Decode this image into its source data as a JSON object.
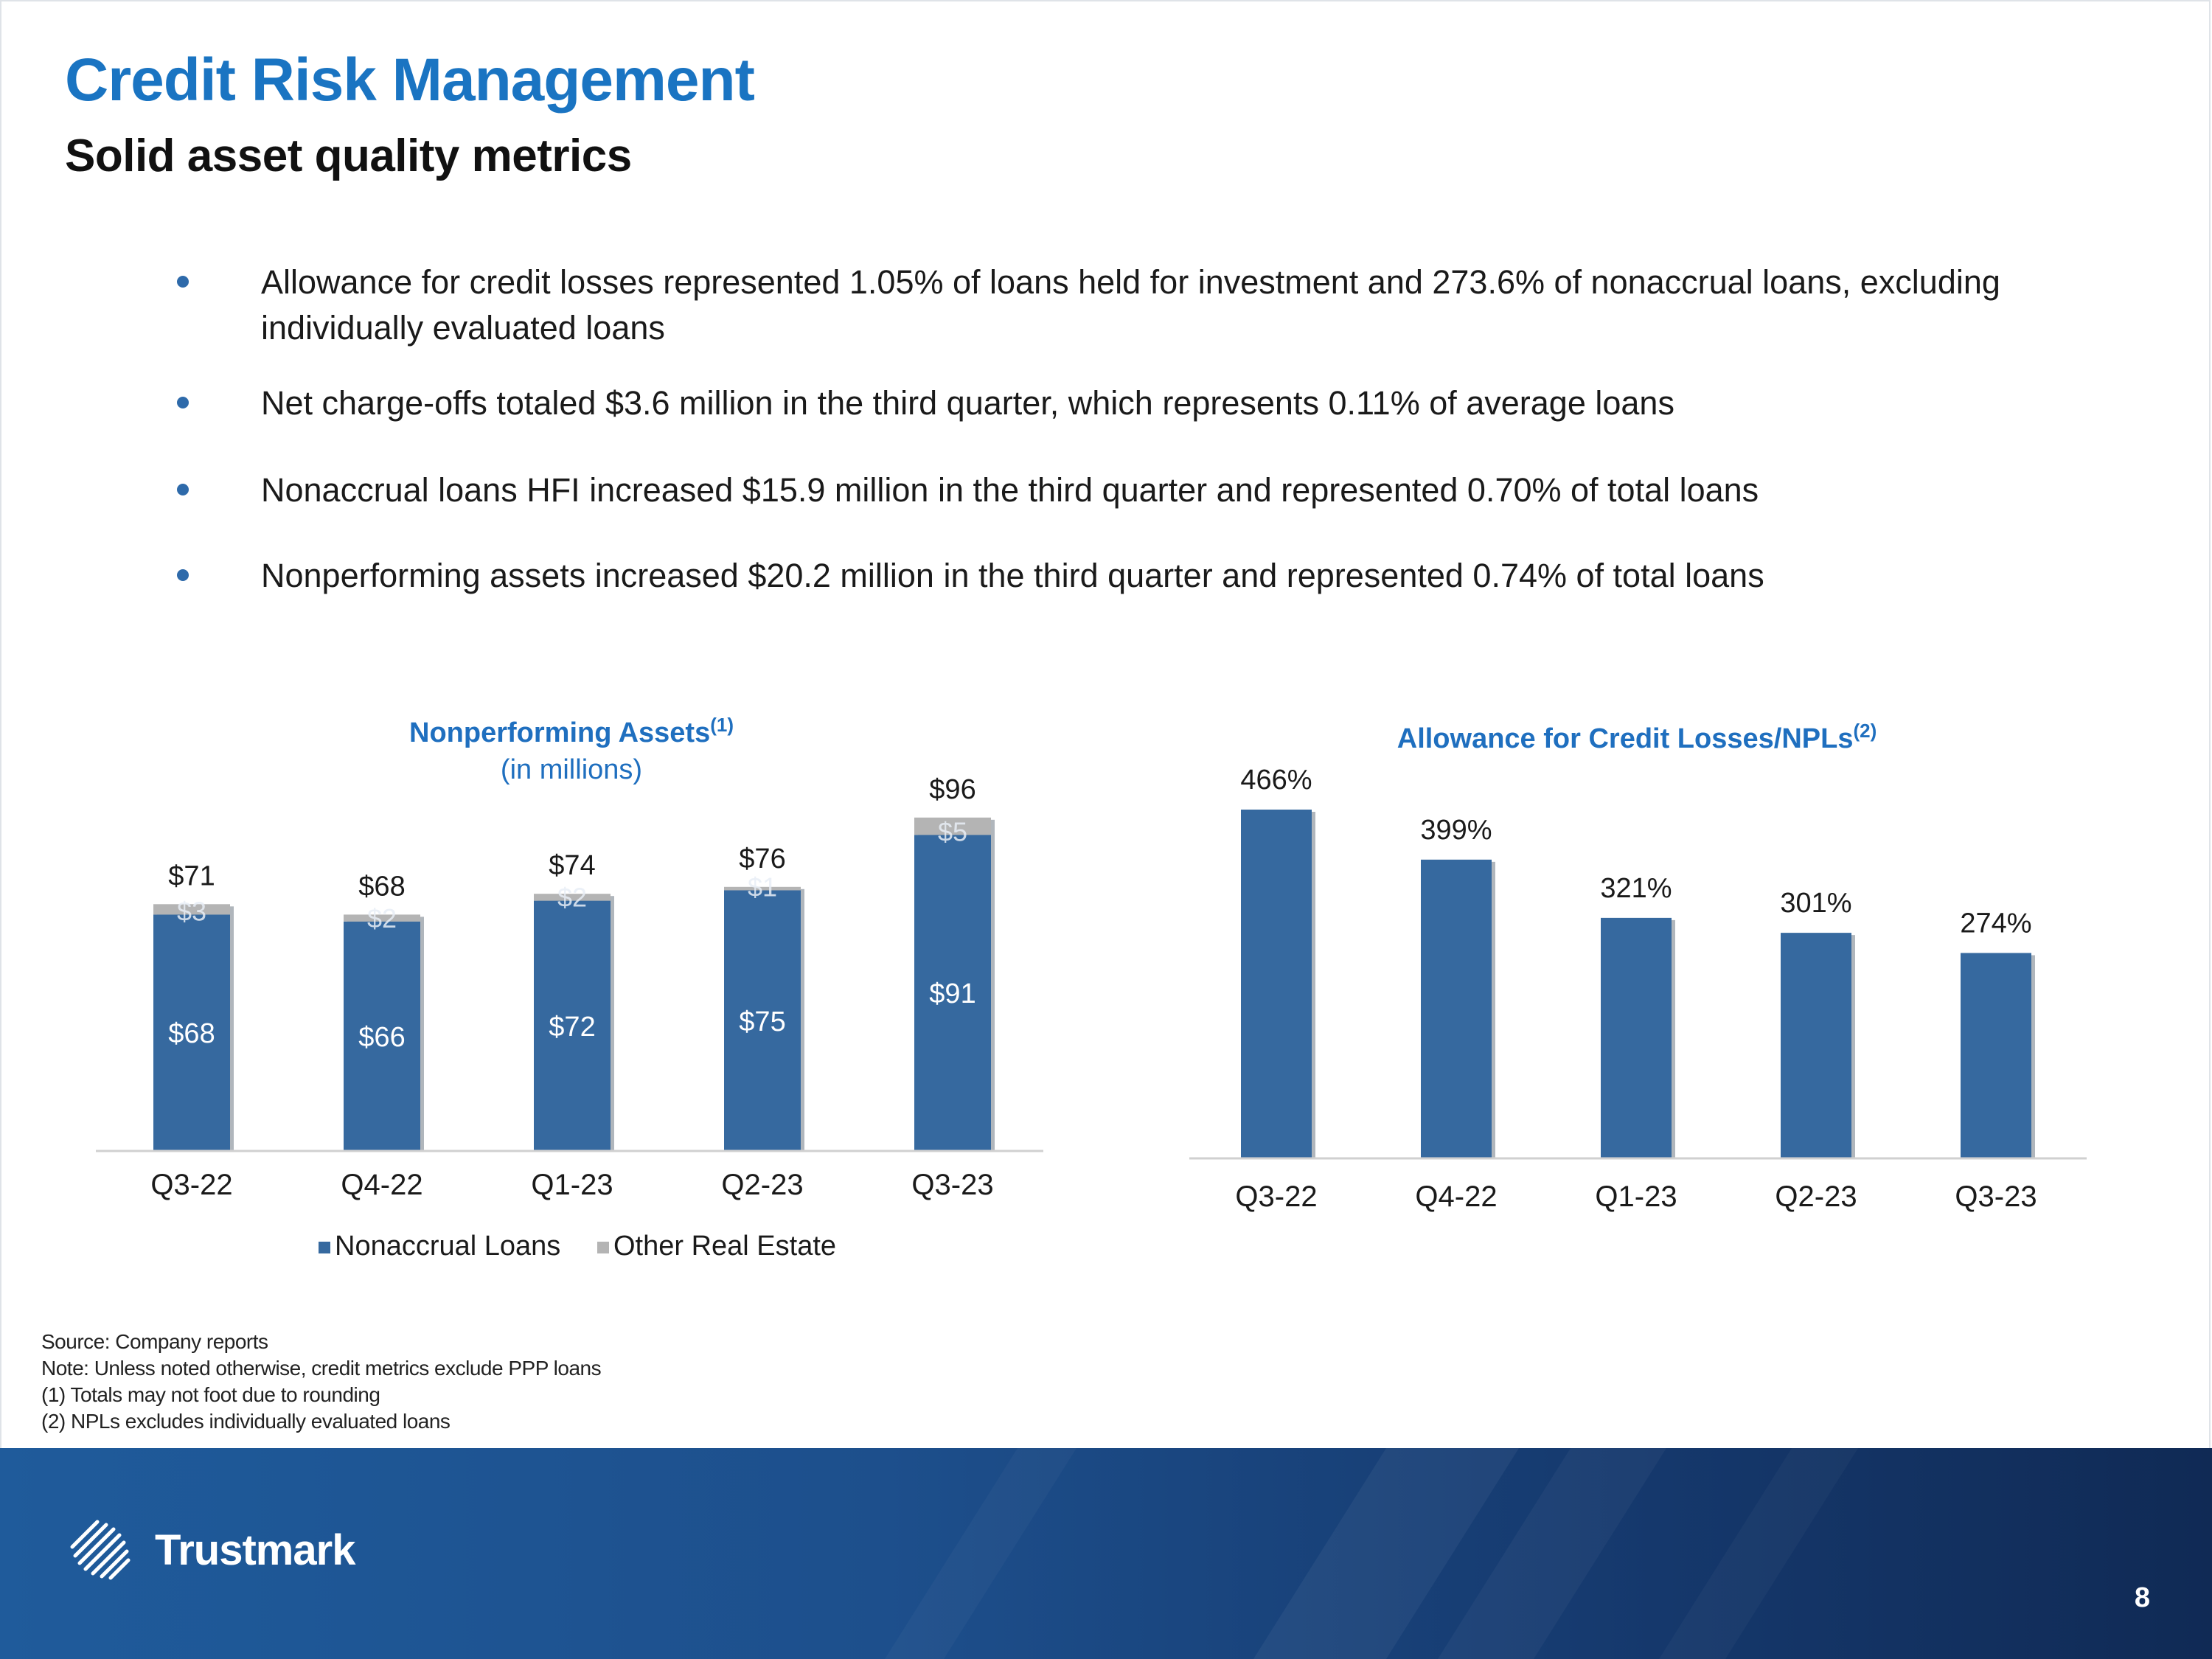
{
  "header": {
    "title": "Credit Risk Management",
    "subtitle": "Solid asset quality metrics"
  },
  "bullets": [
    "Allowance for credit losses represented 1.05% of loans held for investment and 273.6% of nonaccrual loans, excluding individually evaluated loans",
    "Net charge-offs totaled $3.6 million in the third quarter, which represents 0.11% of average loans",
    "Nonaccrual loans HFI increased $15.9 million in the third quarter and represented 0.70% of total loans",
    "Nonperforming assets increased $20.2 million in the third quarter and represented 0.74% of total loans"
  ],
  "chart_data": [
    {
      "type": "bar",
      "stacked": true,
      "title": "Nonperforming Assets",
      "title_superscript": "(1)",
      "subtitle": "(in millions)",
      "categories": [
        "Q3-22",
        "Q4-22",
        "Q1-23",
        "Q2-23",
        "Q3-23"
      ],
      "series": [
        {
          "name": "Nonaccrual Loans",
          "values": [
            68,
            66,
            72,
            75,
            91
          ],
          "labels": [
            "$68",
            "$66",
            "$72",
            "$75",
            "$91"
          ],
          "color": "#36699f"
        },
        {
          "name": "Other Real Estate",
          "values": [
            3,
            2,
            2,
            1,
            5
          ],
          "labels": [
            "$3",
            "$2",
            "$2",
            "$1",
            "$5"
          ],
          "color": "#b4b4b4"
        }
      ],
      "totals": [
        71,
        68,
        74,
        76,
        96
      ],
      "total_labels": [
        "$71",
        "$68",
        "$74",
        "$76",
        "$96"
      ],
      "legend": "bottom",
      "ylim": [
        0,
        100
      ],
      "grid": false
    },
    {
      "type": "bar",
      "title": "Allowance for Credit Losses/NPLs",
      "title_superscript": "(2)",
      "categories": [
        "Q3-22",
        "Q4-22",
        "Q1-23",
        "Q2-23",
        "Q3-23"
      ],
      "values": [
        466,
        399,
        321,
        301,
        274
      ],
      "labels": [
        "466%",
        "399%",
        "321%",
        "301%",
        "274%"
      ],
      "color": "#36699f",
      "ylim": [
        0,
        466
      ],
      "grid": false
    }
  ],
  "footnotes": [
    "Source: Company reports",
    "Note: Unless noted otherwise, credit metrics exclude PPP loans",
    "(1) Totals may not foot due to rounding",
    "(2) NPLs excludes individually evaluated loans"
  ],
  "footer": {
    "brand": "Trustmark",
    "page_number": "8",
    "logo_icon": "trustmark-logo-icon"
  },
  "colors": {
    "title": "#1a74c2",
    "chart_title": "#1f6fbf",
    "bar": "#36699f",
    "other_real_estate": "#b4b4b4",
    "footer_bg": "#1b4a86"
  }
}
